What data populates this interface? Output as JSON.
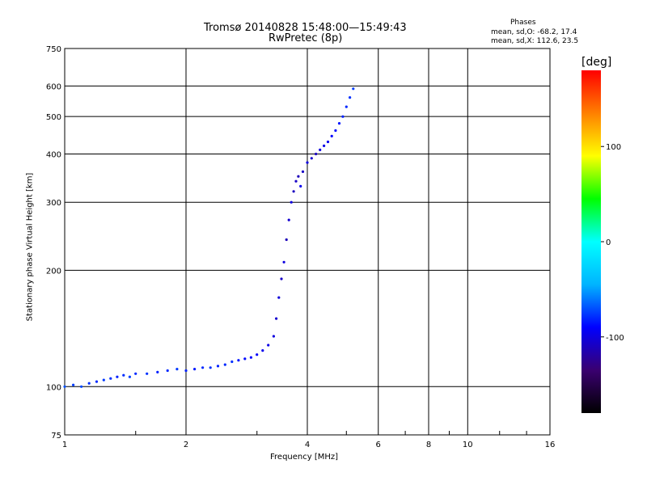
{
  "chart_data": {
    "type": "scatter",
    "title": "Tromsø 20140828 15:48:00—15:49:43",
    "subtitle": "RwPretec (8p)",
    "xlabel": "Frequency [MHz]",
    "ylabel": "Stationary phase Virtual Height [km]",
    "x_scale": "log",
    "y_scale": "log",
    "xlim": [
      1,
      16
    ],
    "ylim": [
      75,
      750
    ],
    "x_ticks": [
      1,
      2,
      4,
      6,
      8,
      10,
      16
    ],
    "x_tick_labels": [
      "1",
      "2",
      "4",
      "6",
      "8",
      "10",
      "16"
    ],
    "y_ticks": [
      75,
      100,
      200,
      300,
      400,
      500,
      600,
      750
    ],
    "y_tick_labels": [
      "75",
      "100",
      "200",
      "300",
      "400",
      "500",
      "600",
      "750"
    ],
    "grid": true,
    "colorbar": {
      "label": "[deg]",
      "range": [
        -180,
        180
      ],
      "ticks": [
        100,
        0,
        -100
      ],
      "tick_labels": [
        "100",
        "0",
        "-100"
      ],
      "colors": [
        "#000000",
        "#3a0070",
        "#0000ff",
        "#00b4ff",
        "#00ffff",
        "#00ff00",
        "#ffff00",
        "#ff8000",
        "#ff0000"
      ]
    },
    "annotation": {
      "title": "Phases",
      "line1": "mean, sd,O: -68.2, 17.4",
      "line2": "mean, sd,X: 112.6, 23.5"
    },
    "series": [
      {
        "values": [
          [
            1.0,
            100,
            -70
          ],
          [
            1.05,
            101,
            -75
          ],
          [
            1.1,
            100,
            -72
          ],
          [
            1.15,
            102,
            -78
          ],
          [
            1.2,
            103,
            -80
          ],
          [
            1.25,
            104,
            -76
          ],
          [
            1.3,
            105,
            -78
          ],
          [
            1.35,
            106,
            -82
          ],
          [
            1.4,
            107,
            -79
          ],
          [
            1.45,
            106,
            -74
          ],
          [
            1.5,
            108,
            -80
          ],
          [
            1.6,
            108,
            -78
          ],
          [
            1.7,
            109,
            -82
          ],
          [
            1.8,
            110,
            -80
          ],
          [
            1.9,
            111,
            -76
          ],
          [
            2.0,
            110,
            -82
          ],
          [
            2.1,
            111,
            -84
          ],
          [
            2.2,
            112,
            -80
          ],
          [
            2.3,
            112,
            -78
          ],
          [
            2.4,
            113,
            -82
          ],
          [
            2.5,
            114,
            -80
          ],
          [
            2.6,
            116,
            -78
          ],
          [
            2.7,
            117,
            -85
          ],
          [
            2.8,
            118,
            -88
          ],
          [
            2.9,
            119,
            -90
          ],
          [
            3.0,
            121,
            -92
          ],
          [
            3.1,
            124,
            -95
          ],
          [
            3.2,
            128,
            -98
          ],
          [
            3.3,
            135,
            -100
          ],
          [
            3.35,
            150,
            -105
          ],
          [
            3.4,
            170,
            -102
          ],
          [
            3.45,
            190,
            -108
          ],
          [
            3.5,
            210,
            -100
          ],
          [
            3.55,
            240,
            -112
          ],
          [
            3.6,
            270,
            -105
          ],
          [
            3.65,
            300,
            -100
          ],
          [
            3.7,
            320,
            -110
          ],
          [
            3.75,
            340,
            -108
          ],
          [
            3.8,
            350,
            -112
          ],
          [
            3.85,
            330,
            -95
          ],
          [
            3.9,
            360,
            -108
          ],
          [
            4.0,
            380,
            -100
          ],
          [
            4.1,
            390,
            -105
          ],
          [
            4.2,
            400,
            -110
          ],
          [
            4.3,
            410,
            -100
          ],
          [
            4.4,
            420,
            -98
          ],
          [
            4.5,
            430,
            -95
          ],
          [
            4.6,
            445,
            -90
          ],
          [
            4.7,
            460,
            -88
          ],
          [
            4.8,
            480,
            -85
          ],
          [
            4.9,
            500,
            -82
          ],
          [
            5.0,
            530,
            -80
          ],
          [
            5.1,
            560,
            -78
          ],
          [
            5.2,
            590,
            -75
          ]
        ]
      }
    ]
  }
}
